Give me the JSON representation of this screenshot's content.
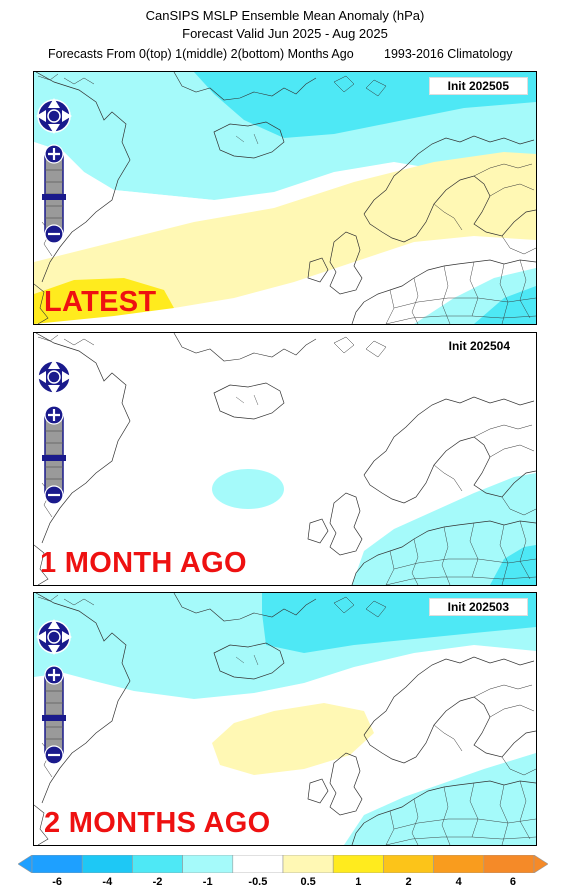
{
  "header": {
    "title": "CanSIPS MSLP Ensemble Mean Anomaly (hPa)",
    "valid": "Forecast Valid Jun 2025 - Aug 2025",
    "forecasts_from": "Forecasts From 0(top) 1(middle) 2(bottom) Months Ago",
    "climatology": "1993-2016 Climatology"
  },
  "panels": [
    {
      "init": "Init 202505",
      "tag": "LATEST"
    },
    {
      "init": "Init 202504",
      "tag": "1 MONTH AGO"
    },
    {
      "init": "Init 202503",
      "tag": "2 MONTHS AGO"
    }
  ],
  "colorbar": {
    "labels": [
      "-6",
      "-4",
      "-2",
      "-1",
      "-0.5",
      "0.5",
      "1",
      "2",
      "4",
      "6"
    ],
    "colors": [
      "#1ea0ff",
      "#1ec8f5",
      "#4ee8f5",
      "#a5fafa",
      "#ffffff",
      "#fff8b4",
      "#ffeb1e",
      "#fcc419",
      "#f99c1e",
      "#f58a28"
    ]
  },
  "controls": {
    "pan": "pan-control-icon",
    "zoom_in": "zoom-in-icon",
    "zoom_out": "zoom-out-icon"
  }
}
